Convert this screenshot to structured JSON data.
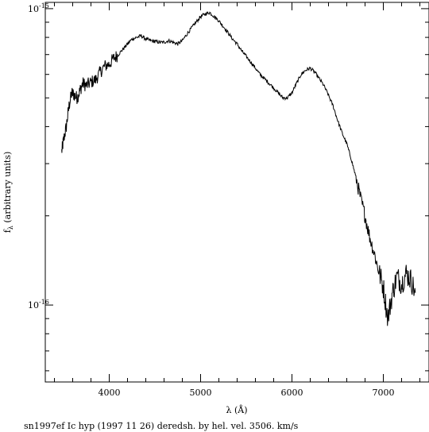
{
  "chart_data": {
    "type": "line",
    "title": "",
    "caption": "sn1997ef Ic hyp (1997 11 26) deredsh. by hel. vel.  3506. km/s",
    "xlabel": "λ (Å)",
    "ylabel": "f",
    "ylabel_subscript": "λ",
    "ylabel_suffix": " (arbitrary units)",
    "xscale": "linear",
    "yscale": "log",
    "xlim": [
      3300,
      7500
    ],
    "ylim": [
      5.5e-05,
      0.00105
    ],
    "xticks": [
      4000,
      5000,
      6000,
      7000
    ],
    "xtick_labels": [
      "4000",
      "5000",
      "6000",
      "7000"
    ],
    "yticks_major": [
      0.0001,
      0.001
    ],
    "ytick_labels": [
      {
        "mantissa": "10",
        "exp": "-16",
        "value": 0.0001
      },
      {
        "mantissa": "10",
        "exp": "-15",
        "value": 0.001
      }
    ],
    "grid": false,
    "series": [
      {
        "color": "#000000",
        "x": [
          3480,
          3500,
          3530,
          3560,
          3590,
          3620,
          3650,
          3680,
          3710,
          3750,
          3800,
          3850,
          3900,
          3950,
          4000,
          4050,
          4100,
          4150,
          4200,
          4250,
          4300,
          4350,
          4400,
          4450,
          4500,
          4550,
          4600,
          4650,
          4700,
          4750,
          4800,
          4850,
          4900,
          4950,
          5000,
          5050,
          5100,
          5150,
          5200,
          5250,
          5300,
          5350,
          5400,
          5450,
          5500,
          5550,
          5600,
          5650,
          5700,
          5750,
          5800,
          5850,
          5900,
          5950,
          6000,
          6050,
          6100,
          6150,
          6200,
          6250,
          6300,
          6350,
          6400,
          6450,
          6500,
          6550,
          6600,
          6650,
          6700,
          6750,
          6800,
          6850,
          6900,
          6950,
          7000,
          7050,
          7100,
          7150,
          7200,
          7250,
          7300,
          7350
        ],
        "y": [
          0.00033,
          0.00036,
          0.0004,
          0.00047,
          0.00052,
          0.00051,
          0.0005,
          0.00053,
          0.00056,
          0.00055,
          0.000565,
          0.000575,
          0.00061,
          0.00064,
          0.00065,
          0.00068,
          0.0007,
          0.00073,
          0.00076,
          0.00079,
          0.0008,
          0.00081,
          0.00079,
          0.00078,
          0.000775,
          0.00077,
          0.00077,
          0.00078,
          0.00077,
          0.00076,
          0.00078,
          0.00082,
          0.00086,
          0.0009,
          0.00094,
          0.00096,
          0.00097,
          0.00094,
          0.00091,
          0.00087,
          0.00083,
          0.00079,
          0.00076,
          0.00072,
          0.00069,
          0.00066,
          0.00063,
          0.0006,
          0.00058,
          0.00056,
          0.00054,
          0.00052,
          0.0005,
          0.0005,
          0.00052,
          0.00056,
          0.0006,
          0.00062,
          0.00063,
          0.00061,
          0.00058,
          0.00055,
          0.00051,
          0.00047,
          0.00042,
          0.00038,
          0.00035,
          0.00031,
          0.00027,
          0.00023,
          0.0002,
          0.00017,
          0.00015,
          0.00013,
          0.000115,
          9e-05,
          0.00011,
          0.000125,
          0.000118,
          0.000128,
          0.000122,
          0.00011
        ]
      }
    ]
  }
}
